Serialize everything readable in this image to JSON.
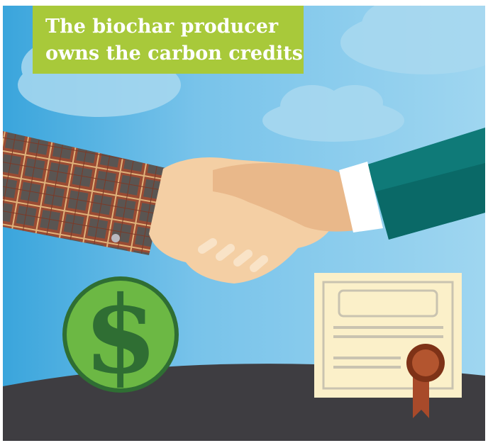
{
  "title": {
    "lines": [
      "The biochar producer",
      "owns the carbon credits"
    ]
  },
  "coin_symbol": "$"
}
